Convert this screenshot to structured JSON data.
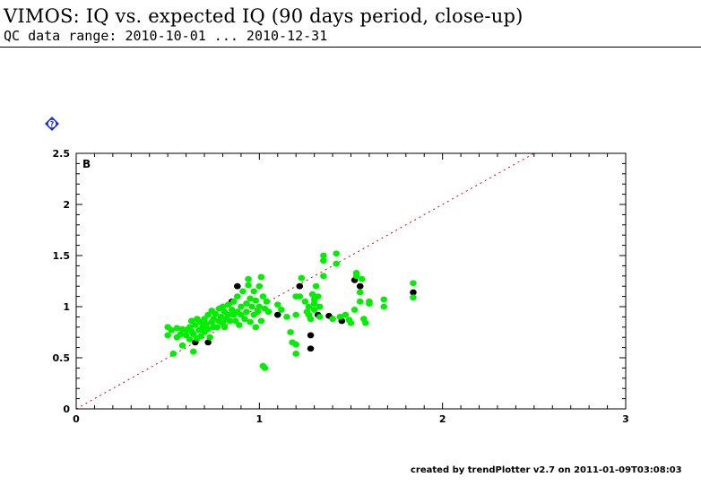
{
  "title": "VIMOS: IQ vs. expected IQ (90 days period, close-up)",
  "subtitle": "QC data range: 2010-10-01 ... 2010-12-31",
  "footer": "created by trendPlotter v2.7 on 2011-01-09T03:08:03",
  "help_icon": {
    "icon": "question-diamond-icon",
    "text": "?",
    "color": "#1f2fd0"
  },
  "chart_data": {
    "type": "scatter",
    "panel_label": "B",
    "xlim": [
      0,
      3
    ],
    "ylim": [
      0,
      2.5
    ],
    "x_ticks": [
      0,
      1,
      2,
      3
    ],
    "y_ticks": [
      0,
      0.5,
      1,
      1.5,
      2,
      2.5
    ],
    "x_tick_labels": [
      "0",
      "1",
      "2",
      "3"
    ],
    "y_tick_labels": [
      "0",
      "0.5",
      "1",
      "1.5",
      "2",
      "2.5"
    ],
    "grid": false,
    "reference_line": {
      "slope": 1,
      "intercept": 0,
      "style": "dotted",
      "color": "#e00000"
    },
    "series": [
      {
        "color": "#000000",
        "points": [
          [
            0.65,
            0.65
          ],
          [
            0.72,
            0.65
          ],
          [
            0.85,
            1.05
          ],
          [
            0.88,
            1.2
          ],
          [
            1.1,
            0.92
          ],
          [
            1.22,
            1.2
          ],
          [
            1.28,
            0.72
          ],
          [
            1.28,
            0.59
          ],
          [
            1.32,
            0.92
          ],
          [
            1.38,
            0.91
          ],
          [
            1.45,
            0.86
          ],
          [
            1.52,
            1.26
          ],
          [
            1.55,
            1.2
          ],
          [
            1.84,
            1.14
          ]
        ]
      },
      {
        "color": "#00ee00",
        "points": [
          [
            0.5,
            0.8
          ],
          [
            0.5,
            0.72
          ],
          [
            0.52,
            0.77
          ],
          [
            0.53,
            0.54
          ],
          [
            0.55,
            0.79
          ],
          [
            0.55,
            0.7
          ],
          [
            0.57,
            0.73
          ],
          [
            0.58,
            0.62
          ],
          [
            0.58,
            0.78
          ],
          [
            0.6,
            0.77
          ],
          [
            0.6,
            0.72
          ],
          [
            0.62,
            0.8
          ],
          [
            0.62,
            0.68
          ],
          [
            0.63,
            0.86
          ],
          [
            0.63,
            0.76
          ],
          [
            0.64,
            0.73
          ],
          [
            0.64,
            0.56
          ],
          [
            0.65,
            0.82
          ],
          [
            0.66,
            0.69
          ],
          [
            0.66,
            0.88
          ],
          [
            0.67,
            0.77
          ],
          [
            0.68,
            0.71
          ],
          [
            0.68,
            0.85
          ],
          [
            0.69,
            0.8
          ],
          [
            0.7,
            0.75
          ],
          [
            0.7,
            0.88
          ],
          [
            0.71,
            0.83
          ],
          [
            0.72,
            0.78
          ],
          [
            0.72,
            0.92
          ],
          [
            0.73,
            0.7
          ],
          [
            0.74,
            0.85
          ],
          [
            0.74,
            0.96
          ],
          [
            0.75,
            0.8
          ],
          [
            0.75,
            0.88
          ],
          [
            0.76,
            0.93
          ],
          [
            0.77,
            0.8
          ],
          [
            0.78,
            0.86
          ],
          [
            0.78,
            0.98
          ],
          [
            0.79,
            0.9
          ],
          [
            0.8,
            0.84
          ],
          [
            0.8,
            1.0
          ],
          [
            0.81,
            0.95
          ],
          [
            0.81,
            0.8
          ],
          [
            0.82,
            0.88
          ],
          [
            0.83,
            0.92
          ],
          [
            0.83,
            1.02
          ],
          [
            0.84,
            0.86
          ],
          [
            0.85,
            0.97
          ],
          [
            0.86,
            0.92
          ],
          [
            0.86,
            1.05
          ],
          [
            0.87,
            0.86
          ],
          [
            0.88,
            0.95
          ],
          [
            0.88,
            1.1
          ],
          [
            0.89,
            0.82
          ],
          [
            0.9,
            1.0
          ],
          [
            0.9,
            0.92
          ],
          [
            0.91,
            1.15
          ],
          [
            0.92,
            0.88
          ],
          [
            0.93,
            1.03
          ],
          [
            0.93,
            0.95
          ],
          [
            0.94,
            1.27
          ],
          [
            0.94,
            1.21
          ],
          [
            0.95,
            0.85
          ],
          [
            0.95,
            1.08
          ],
          [
            0.96,
            1.0
          ],
          [
            0.97,
            0.92
          ],
          [
            0.97,
            1.15
          ],
          [
            0.98,
            0.8
          ],
          [
            0.98,
            1.06
          ],
          [
            0.99,
            0.95
          ],
          [
            1.0,
            1.2
          ],
          [
            1.0,
            1.0
          ],
          [
            1.01,
            1.29
          ],
          [
            1.01,
            0.86
          ],
          [
            1.02,
            1.1
          ],
          [
            1.02,
            0.42
          ],
          [
            1.03,
            0.4
          ],
          [
            1.03,
            0.98
          ],
          [
            1.04,
            1.05
          ],
          [
            1.05,
            0.95
          ],
          [
            1.1,
            1.02
          ],
          [
            1.12,
            0.97
          ],
          [
            1.15,
            0.9
          ],
          [
            1.17,
            0.75
          ],
          [
            1.18,
            0.65
          ],
          [
            1.2,
            0.92
          ],
          [
            1.2,
            1.1
          ],
          [
            1.2,
            0.54
          ],
          [
            1.2,
            0.63
          ],
          [
            1.22,
            1.1
          ],
          [
            1.23,
            1.28
          ],
          [
            1.25,
            1.05
          ],
          [
            1.26,
            0.95
          ],
          [
            1.27,
            1.0
          ],
          [
            1.27,
            0.92
          ],
          [
            1.28,
            0.88
          ],
          [
            1.29,
            1.12
          ],
          [
            1.3,
            0.97
          ],
          [
            1.3,
            1.03
          ],
          [
            1.3,
            1.07
          ],
          [
            1.31,
            1.2
          ],
          [
            1.32,
            1.1
          ],
          [
            1.33,
            0.9
          ],
          [
            1.33,
            1.0
          ],
          [
            1.35,
            1.45
          ],
          [
            1.35,
            1.5
          ],
          [
            1.35,
            1.3
          ],
          [
            1.4,
            0.88
          ],
          [
            1.42,
            1.52
          ],
          [
            1.42,
            1.42
          ],
          [
            1.44,
            0.9
          ],
          [
            1.47,
            0.92
          ],
          [
            1.49,
            0.87
          ],
          [
            1.5,
            0.84
          ],
          [
            1.52,
            0.97
          ],
          [
            1.53,
            1.33
          ],
          [
            1.53,
            1.3
          ],
          [
            1.55,
            1.14
          ],
          [
            1.55,
            1.05
          ],
          [
            1.56,
            1.27
          ],
          [
            1.57,
            0.88
          ],
          [
            1.58,
            0.84
          ],
          [
            1.6,
            1.05
          ],
          [
            1.6,
            1.03
          ],
          [
            1.68,
            1.0
          ],
          [
            1.68,
            1.07
          ],
          [
            1.84,
            1.23
          ],
          [
            1.84,
            1.09
          ]
        ]
      }
    ]
  }
}
